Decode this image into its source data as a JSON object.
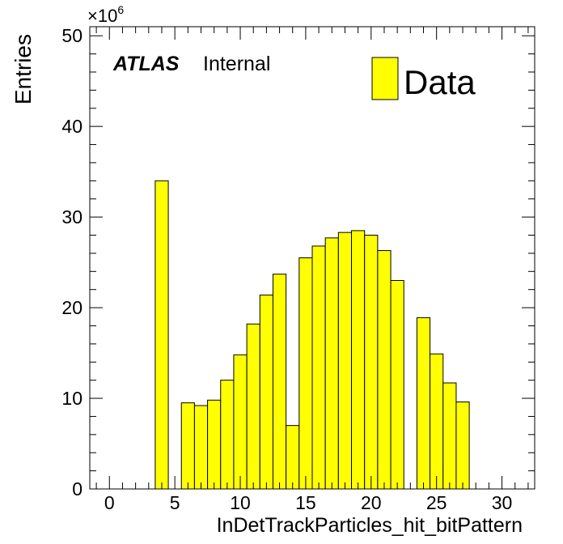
{
  "chart_data": {
    "type": "bar",
    "bins": [
      {
        "lo": 3.5,
        "hi": 4.5,
        "value": 34.0
      },
      {
        "lo": 5.5,
        "hi": 6.5,
        "value": 9.5
      },
      {
        "lo": 6.5,
        "hi": 7.5,
        "value": 9.2
      },
      {
        "lo": 7.5,
        "hi": 8.5,
        "value": 9.8
      },
      {
        "lo": 8.5,
        "hi": 9.5,
        "value": 12.0
      },
      {
        "lo": 9.5,
        "hi": 10.5,
        "value": 14.8
      },
      {
        "lo": 10.5,
        "hi": 11.5,
        "value": 18.2
      },
      {
        "lo": 11.5,
        "hi": 12.5,
        "value": 21.4
      },
      {
        "lo": 12.5,
        "hi": 13.5,
        "value": 23.7
      },
      {
        "lo": 13.5,
        "hi": 14.5,
        "value": 7.0
      },
      {
        "lo": 14.5,
        "hi": 15.5,
        "value": 25.5
      },
      {
        "lo": 15.5,
        "hi": 16.5,
        "value": 26.8
      },
      {
        "lo": 16.5,
        "hi": 17.5,
        "value": 27.7
      },
      {
        "lo": 17.5,
        "hi": 18.5,
        "value": 28.3
      },
      {
        "lo": 18.5,
        "hi": 19.5,
        "value": 28.5
      },
      {
        "lo": 19.5,
        "hi": 20.5,
        "value": 28.0
      },
      {
        "lo": 20.5,
        "hi": 21.5,
        "value": 26.3
      },
      {
        "lo": 21.5,
        "hi": 22.5,
        "value": 23.0
      },
      {
        "lo": 23.5,
        "hi": 24.5,
        "value": 18.9
      },
      {
        "lo": 24.5,
        "hi": 25.5,
        "value": 14.9
      },
      {
        "lo": 25.5,
        "hi": 26.5,
        "value": 11.7
      },
      {
        "lo": 26.5,
        "hi": 27.5,
        "value": 9.6
      }
    ],
    "xlim": [
      -1.5,
      32.5
    ],
    "ylim": [
      0,
      51
    ],
    "xticks": [
      0,
      5,
      10,
      15,
      20,
      25,
      30
    ],
    "yticks": [
      0,
      10,
      20,
      30,
      40,
      50
    ],
    "xlabel": "InDetTrackParticles_hit_bitPattern",
    "ylabel": "Entries",
    "y_multiplier": "×10",
    "y_multiplier_exp": "6",
    "experiment": "ATLAS",
    "status": "Internal",
    "legend": {
      "label": "Data",
      "position": "top-right"
    },
    "fill_color": "#ffff00",
    "line_color": "#000000"
  }
}
